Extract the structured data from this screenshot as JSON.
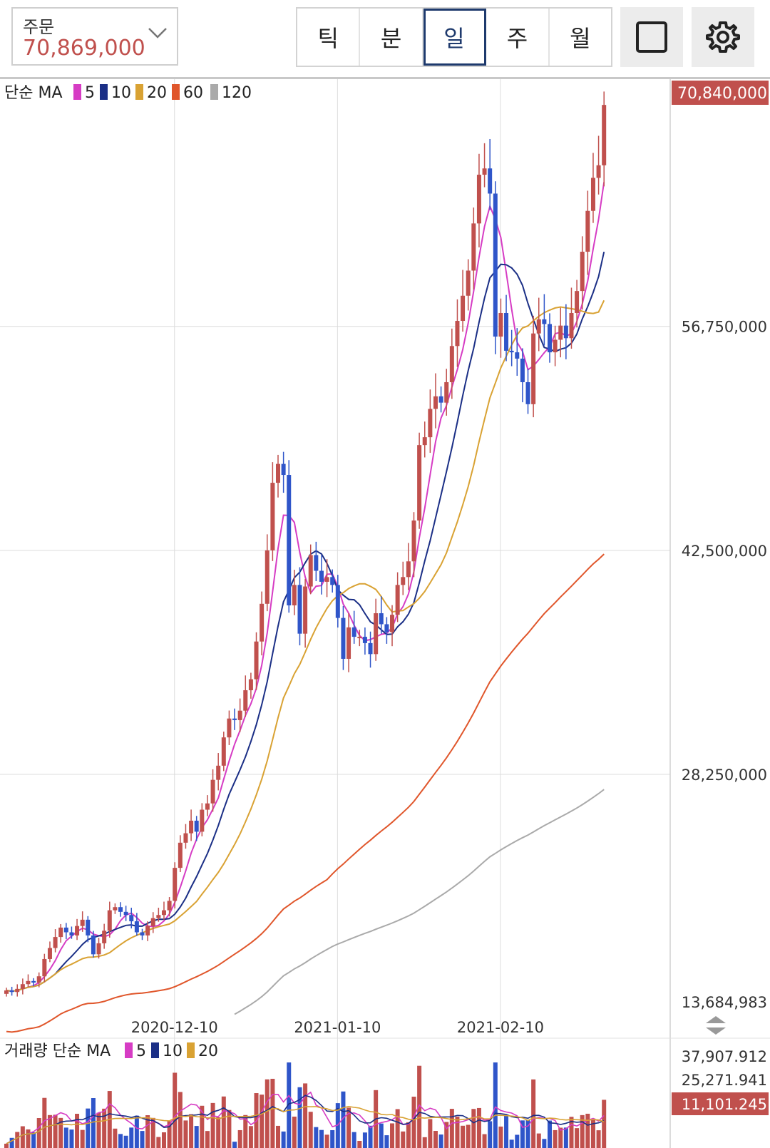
{
  "order": {
    "label": "주문",
    "value": "70,869,000"
  },
  "period_tabs": [
    {
      "label": "틱",
      "active": false
    },
    {
      "label": "분",
      "active": false
    },
    {
      "label": "일",
      "active": true
    },
    {
      "label": "주",
      "active": false
    },
    {
      "label": "월",
      "active": false
    }
  ],
  "icons": {
    "layout": "square-icon",
    "settings": "gear-icon"
  },
  "colors": {
    "up": "#c0504d",
    "down": "#2f55c9",
    "ma5": "#d63cc4",
    "ma10": "#1b2f86",
    "ma20": "#d9a233",
    "ma60": "#e0562b",
    "ma120": "#aaaaaa",
    "current_price_bg": "#c0504d"
  },
  "chart_data": [
    {
      "type": "candlestick",
      "legend_title": "단순 MA",
      "legend": [
        {
          "name": "5",
          "color": "#d63cc4"
        },
        {
          "name": "10",
          "color": "#1b2f86"
        },
        {
          "name": "20",
          "color": "#d9a233"
        },
        {
          "name": "60",
          "color": "#e0562b"
        },
        {
          "name": "120",
          "color": "#aaaaaa"
        }
      ],
      "y_ticks": [
        "70,840,000",
        "56,750,000",
        "42,500,000",
        "28,250,000",
        "13,684,983"
      ],
      "y_tick_values": [
        70840000,
        56750000,
        42500000,
        28250000,
        13684983
      ],
      "ylim": [
        13684983,
        71800000
      ],
      "current_price": "70,840,000",
      "x_ticks": [
        "2020-12-10",
        "2021-01-10",
        "2021-02-10"
      ],
      "x_tick_index": [
        27,
        57,
        87
      ],
      "n_days": 120,
      "grid": true,
      "closes": [
        14500000,
        14400000,
        14600000,
        14900000,
        15100000,
        15000000,
        15400000,
        16500000,
        17200000,
        17900000,
        18500000,
        18200000,
        18000000,
        18600000,
        19000000,
        18000000,
        16800000,
        17500000,
        18300000,
        19600000,
        19800000,
        19500000,
        19300000,
        18900000,
        18200000,
        18000000,
        18600000,
        19100000,
        19300000,
        19600000,
        20200000,
        22300000,
        23900000,
        24500000,
        25300000,
        24600000,
        26000000,
        26400000,
        27900000,
        28800000,
        30600000,
        31800000,
        31700000,
        32300000,
        33600000,
        34300000,
        36700000,
        39100000,
        42500000,
        46800000,
        48000000,
        47300000,
        39000000,
        40300000,
        37200000,
        40200000,
        42200000,
        41200000,
        40500000,
        40800000,
        40300000,
        38200000,
        35600000,
        37600000,
        37000000,
        37000000,
        36600000,
        35900000,
        38500000,
        37800000,
        37300000,
        38400000,
        40300000,
        40800000,
        41800000,
        44400000,
        49200000,
        49700000,
        51500000,
        52300000,
        51900000,
        53200000,
        55500000,
        57100000,
        58700000,
        60300000,
        63300000,
        66400000,
        66800000,
        65200000,
        56100000,
        57600000,
        55200000,
        55100000,
        54700000,
        53200000,
        51800000,
        56300000,
        57200000,
        56900000,
        55100000,
        55900000,
        56800000,
        56000000,
        57600000,
        59000000,
        61500000,
        64100000,
        66200000,
        67000000,
        70840000
      ]
    },
    {
      "type": "bar",
      "legend_title": "거래량 단순 MA",
      "legend": [
        {
          "name": "5",
          "color": "#d63cc4"
        },
        {
          "name": "10",
          "color": "#1b2f86"
        },
        {
          "name": "20",
          "color": "#d9a233"
        }
      ],
      "y_ticks": [
        "37,907.912",
        "25,271.941",
        "11,101.245"
      ],
      "y_tick_values": [
        37907.912,
        25271.941,
        11101.245
      ],
      "current_volume": "11,101.245"
    }
  ]
}
